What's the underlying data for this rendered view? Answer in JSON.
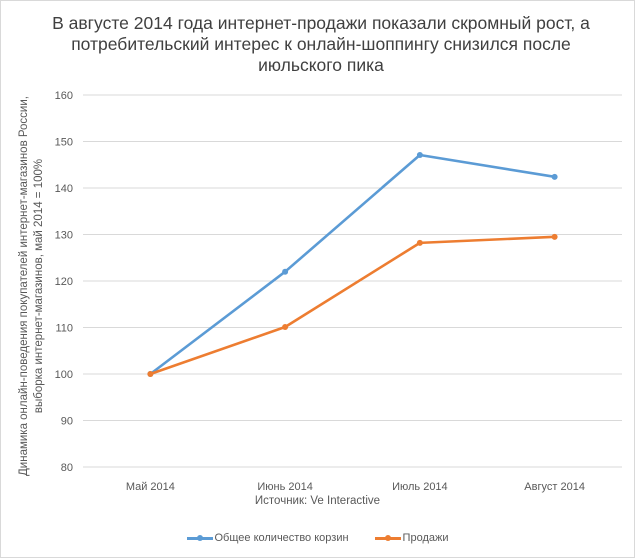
{
  "chart_data": {
    "type": "line",
    "title": "В августе 2014 года интернет-продажи показали скромный рост, а потребительский интерес к онлайн-шоппингу снизился после июльского пика",
    "ylabel_line1": "Динамика онлайн-поведения  покупателей интернет-магазинов России,",
    "ylabel_line2": "выборка интернет-магазинов, май 2014 = 100%",
    "xlabel": "Источник:  Ve Interactive",
    "categories": [
      "Май 2014",
      "Июнь 2014",
      "Июль 2014",
      "Август 2014"
    ],
    "ylim": [
      80,
      160
    ],
    "yticks": [
      "80",
      "90",
      "100",
      "110",
      "120",
      "130",
      "140",
      "150",
      "160"
    ],
    "grid": true,
    "legend_position": "bottom",
    "series": [
      {
        "name": "Общее количество корзин",
        "color": "#5b9bd5",
        "values": [
          100,
          122,
          147.1,
          142.4
        ]
      },
      {
        "name": "Продажи",
        "color": "#ed7d31",
        "values": [
          100,
          110.1,
          128.2,
          129.5
        ]
      }
    ]
  }
}
